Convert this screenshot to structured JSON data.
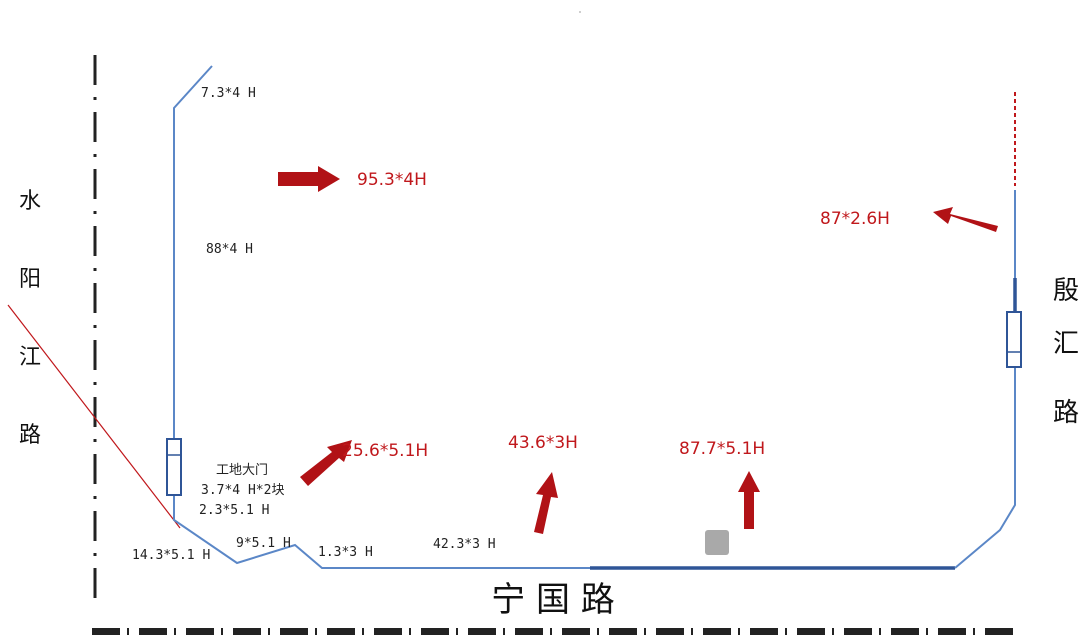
{
  "colors": {
    "fence_line": "#5b87c7",
    "fence_thick": "#2f5597",
    "road_dash": "#222222",
    "arrow": "#b11216",
    "red_label": "#c0181c",
    "black_label": "#222222",
    "diagonal": "#c0181c",
    "red_dashed": "#c0181c"
  },
  "roads": {
    "left": [
      "水",
      "阳",
      "江",
      "路"
    ],
    "right": [
      "殷",
      "汇",
      "路"
    ],
    "bottom": "宁 国 路"
  },
  "black_labels": {
    "top_left": "7.3*4 H",
    "left_middle": "88*4 H",
    "gate_title": "工地大门",
    "gate_size": "3.7*4 H*2块",
    "below_gate": "2.3*5.1 H",
    "bottom_1": "14.3*5.1 H",
    "bottom_2": "9*5.1 H",
    "bottom_3": "1.3*3 H",
    "bottom_4": "42.3*3 H"
  },
  "red_labels": {
    "top": "95.3*4H",
    "right": "87*2.6H",
    "gate": "25.6*5.1H",
    "middle": "43.6*3H",
    "right_bottom": "87.7*5.1H"
  },
  "icons": {
    "arrows": [
      "arrow-right-icon",
      "arrow-up-left-icon",
      "arrow-up-right-icon",
      "arrow-up-icon",
      "arrow-up-icon"
    ],
    "gates": [
      "gate-left-icon",
      "gate-right-icon"
    ]
  }
}
